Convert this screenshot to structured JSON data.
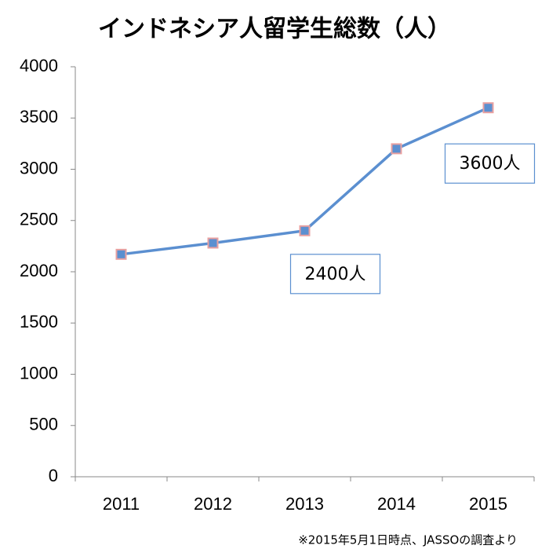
{
  "chart_data": {
    "type": "line",
    "title": "インドネシア人留学生総数（人）",
    "categories": [
      "2011",
      "2012",
      "2013",
      "2014",
      "2015"
    ],
    "series": [
      {
        "name": "インドネシア人留学生総数",
        "color": "#5b8fd0",
        "values": [
          2170,
          2280,
          2400,
          3200,
          3600
        ],
        "value_labels": [
          null,
          null,
          "2400人",
          null,
          "3600人"
        ]
      }
    ],
    "ylim": [
      0,
      4000
    ],
    "yticks": [
      0,
      500,
      1000,
      1500,
      2000,
      2500,
      3000,
      3500,
      4000
    ],
    "grid": false,
    "legend": false,
    "note": "※2015年5月1日時点、JASSOの調査より"
  }
}
